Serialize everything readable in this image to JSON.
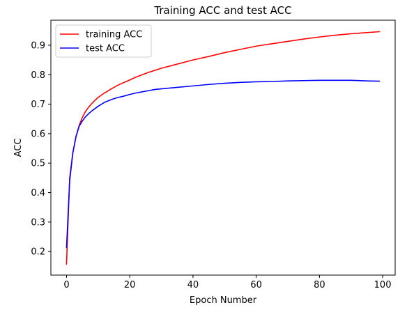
{
  "chart_data": {
    "type": "line",
    "title": "Training ACC and test ACC",
    "xlabel": "Epoch Number",
    "ylabel": "ACC",
    "xlim": [
      -4.95,
      103.95
    ],
    "ylim": [
      0.12,
      0.985
    ],
    "xticks": [
      0,
      20,
      40,
      60,
      80,
      100
    ],
    "yticks": [
      0.2,
      0.3,
      0.4,
      0.5,
      0.6,
      0.7,
      0.8,
      0.9
    ],
    "grid": false,
    "legend_position": "top-left",
    "series": [
      {
        "name": "training ACC",
        "color": "#ff0000",
        "x": [
          0,
          1,
          2,
          3,
          4,
          5,
          6,
          7,
          8,
          9,
          10,
          12,
          14,
          16,
          18,
          20,
          22,
          24,
          26,
          28,
          30,
          35,
          40,
          45,
          50,
          55,
          60,
          65,
          70,
          75,
          80,
          85,
          90,
          95,
          99
        ],
        "y": [
          0.157,
          0.45,
          0.535,
          0.59,
          0.628,
          0.655,
          0.675,
          0.69,
          0.702,
          0.713,
          0.723,
          0.738,
          0.751,
          0.763,
          0.773,
          0.782,
          0.792,
          0.8,
          0.808,
          0.815,
          0.822,
          0.836,
          0.85,
          0.862,
          0.875,
          0.886,
          0.897,
          0.905,
          0.913,
          0.921,
          0.928,
          0.934,
          0.939,
          0.943,
          0.946
        ]
      },
      {
        "name": "test ACC",
        "color": "#0000ff",
        "x": [
          0,
          1,
          2,
          3,
          4,
          5,
          6,
          7,
          8,
          9,
          10,
          12,
          14,
          16,
          18,
          20,
          22,
          24,
          26,
          28,
          30,
          35,
          40,
          45,
          50,
          55,
          60,
          65,
          70,
          75,
          80,
          85,
          90,
          95,
          99
        ],
        "y": [
          0.213,
          0.44,
          0.535,
          0.59,
          0.625,
          0.643,
          0.657,
          0.668,
          0.677,
          0.685,
          0.693,
          0.706,
          0.715,
          0.722,
          0.727,
          0.733,
          0.738,
          0.742,
          0.746,
          0.75,
          0.752,
          0.757,
          0.762,
          0.767,
          0.771,
          0.774,
          0.776,
          0.777,
          0.779,
          0.78,
          0.781,
          0.781,
          0.781,
          0.779,
          0.778
        ]
      }
    ]
  }
}
